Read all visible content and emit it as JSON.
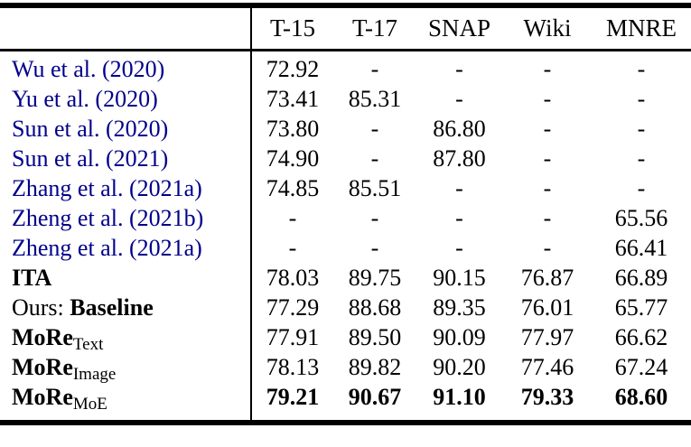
{
  "colors": {
    "citation_link": "#00008B",
    "text": "#000000",
    "rule": "#000000",
    "background": "#ffffff"
  },
  "table": {
    "header": {
      "corner": "",
      "columns": [
        "T-15",
        "T-17",
        "SNAP",
        "Wiki",
        "MNRE"
      ]
    },
    "rows": [
      {
        "label": "Wu et al. (2020)",
        "type": "citation",
        "cells": [
          "72.92",
          "-",
          "-",
          "-",
          "-"
        ]
      },
      {
        "label": "Yu et al. (2020)",
        "type": "citation",
        "cells": [
          "73.41",
          "85.31",
          "-",
          "-",
          "-"
        ]
      },
      {
        "label": "Sun et al. (2020)",
        "type": "citation",
        "cells": [
          "73.80",
          "-",
          "86.80",
          "-",
          "-"
        ]
      },
      {
        "label": "Sun et al. (2021)",
        "type": "citation",
        "cells": [
          "74.90",
          "-",
          "87.80",
          "-",
          "-"
        ]
      },
      {
        "label": "Zhang et al. (2021a)",
        "type": "citation",
        "cells": [
          "74.85",
          "85.51",
          "-",
          "-",
          "-"
        ]
      },
      {
        "label": "Zheng et al. (2021b)",
        "type": "citation",
        "cells": [
          "-",
          "-",
          "-",
          "-",
          "65.56"
        ]
      },
      {
        "label": "Zheng et al. (2021a)",
        "type": "citation",
        "cells": [
          "-",
          "-",
          "-",
          "-",
          "66.41"
        ]
      },
      {
        "label": "ITA",
        "type": "bold",
        "cells": [
          "78.03",
          "89.75",
          "90.15",
          "76.87",
          "66.89"
        ]
      },
      {
        "prefix": "Ours: ",
        "label": "Baseline",
        "type": "ours",
        "cells": [
          "77.29",
          "88.68",
          "89.35",
          "76.01",
          "65.77"
        ]
      },
      {
        "label": "MoRe",
        "subscript": "Text",
        "type": "method",
        "cells": [
          "77.91",
          "89.50",
          "90.09",
          "77.97",
          "66.62"
        ]
      },
      {
        "label": "MoRe",
        "subscript": "Image",
        "type": "method",
        "cells": [
          "78.13",
          "89.82",
          "90.20",
          "77.46",
          "67.24"
        ]
      },
      {
        "label": "MoRe",
        "subscript": "MoE",
        "type": "method",
        "bold_values": true,
        "cells": [
          "79.21",
          "90.67",
          "91.10",
          "79.33",
          "68.60"
        ]
      }
    ]
  }
}
